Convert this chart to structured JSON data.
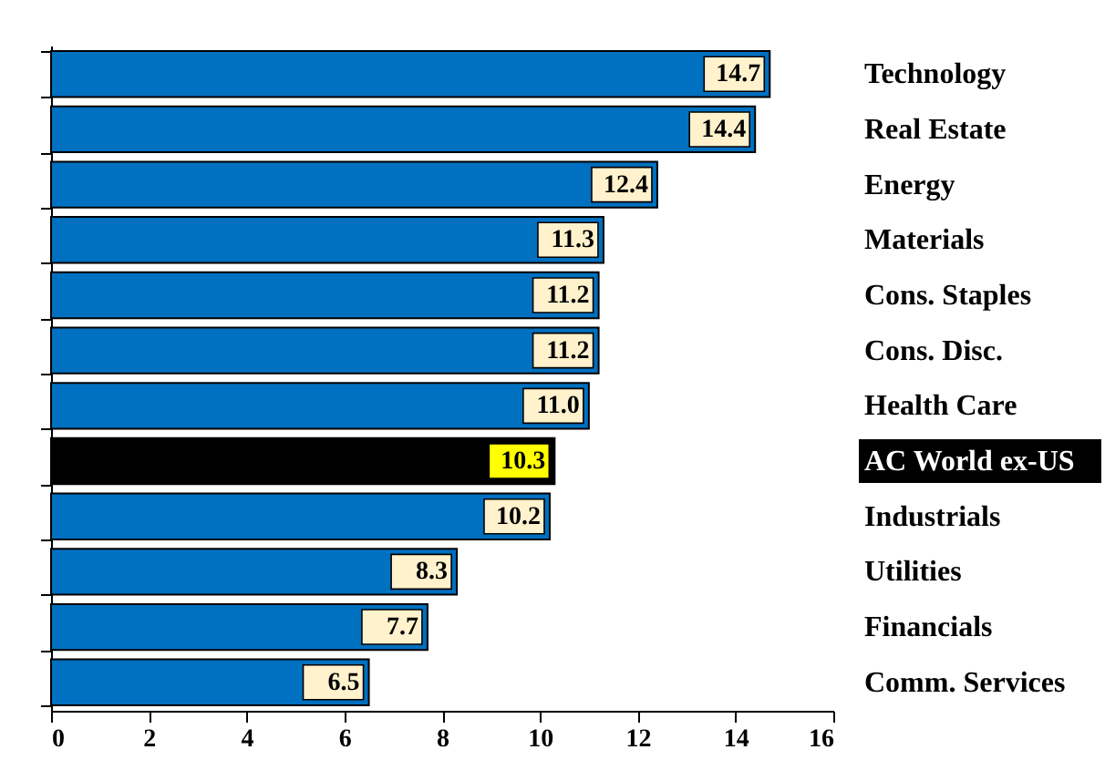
{
  "chart_data": {
    "type": "bar",
    "orientation": "horizontal",
    "categories": [
      "Technology",
      "Real Estate",
      "Energy",
      "Materials",
      "Cons. Staples",
      "Cons. Disc.",
      "Health Care",
      "AC World ex-US",
      "Industrials",
      "Utilities",
      "Financials",
      "Comm. Services"
    ],
    "values": [
      14.7,
      14.4,
      12.4,
      11.3,
      11.2,
      11.2,
      11.0,
      10.3,
      10.2,
      8.3,
      7.7,
      6.5
    ],
    "value_labels": [
      "14.7",
      "14.4",
      "12.4",
      "11.3",
      "11.2",
      "11.2",
      "11.0",
      "10.3",
      "10.2",
      "8.3",
      "7.7",
      "6.5"
    ],
    "colors": [
      "#0070c0",
      "#0070c0",
      "#0070c0",
      "#0070c0",
      "#0070c0",
      "#0070c0",
      "#0070c0",
      "#000000",
      "#0070c0",
      "#0070c0",
      "#0070c0",
      "#0070c0"
    ],
    "xlim": [
      0,
      16
    ],
    "xticks": [
      0,
      2,
      4,
      6,
      8,
      10,
      12,
      14,
      16
    ]
  }
}
